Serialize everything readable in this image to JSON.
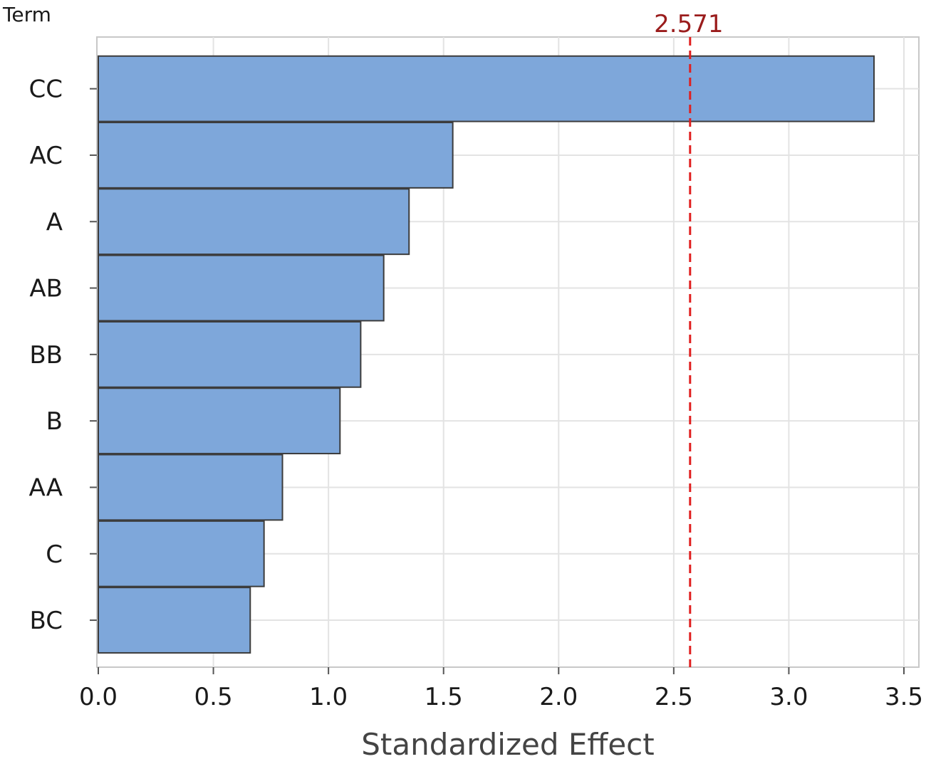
{
  "chart_data": {
    "type": "bar",
    "orientation": "horizontal",
    "y_title": "Term",
    "xlabel": "Standardized Effect",
    "categories": [
      "CC",
      "AC",
      "A",
      "AB",
      "BB",
      "B",
      "AA",
      "C",
      "BC"
    ],
    "values": [
      3.37,
      1.54,
      1.35,
      1.24,
      1.14,
      1.05,
      0.8,
      0.72,
      0.66
    ],
    "xlim": [
      0.0,
      3.5
    ],
    "xticks": [
      "0.0",
      "0.5",
      "1.0",
      "1.5",
      "2.0",
      "2.5",
      "3.0",
      "3.5"
    ],
    "reference_line": {
      "value": 2.571,
      "label": "2.571",
      "style": "dashed",
      "color": "#e02020",
      "label_color": "#9a1c1c"
    },
    "grid": true,
    "bar_color": "#7ea7da",
    "bar_edge_color": "#3c3c3c",
    "legend": "none"
  }
}
